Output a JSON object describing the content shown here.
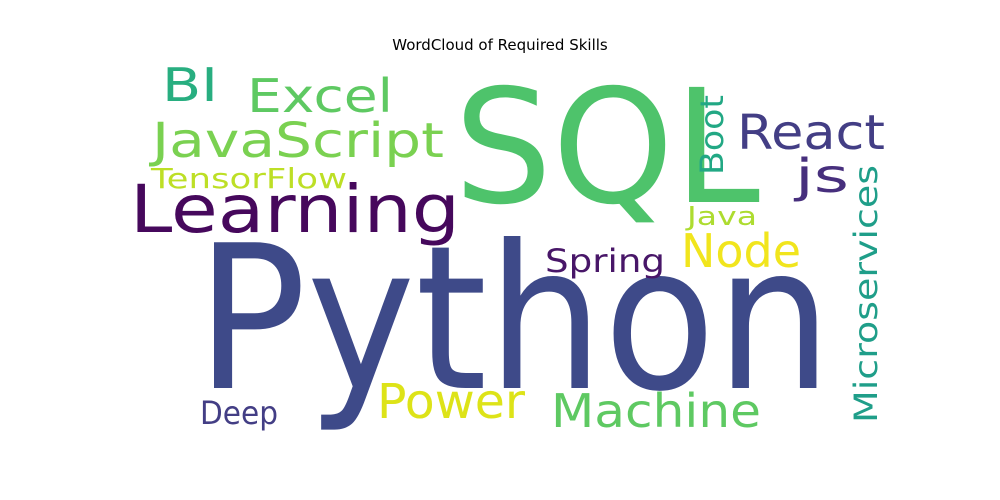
{
  "chart_data": {
    "type": "wordcloud",
    "title": "WordCloud of Required Skills",
    "words": [
      {
        "text": "Python",
        "color": "#3e4a89"
      },
      {
        "text": "SQL",
        "color": "#4ec36b"
      },
      {
        "text": "Learning",
        "color": "#46085c"
      },
      {
        "text": "Machine",
        "color": "#5ec962"
      },
      {
        "text": "JavaScript",
        "color": "#7ad151"
      },
      {
        "text": "React",
        "color": "#433e85"
      },
      {
        "text": "Power",
        "color": "#dde318"
      },
      {
        "text": "Excel",
        "color": "#5ec962"
      },
      {
        "text": "Node",
        "color": "#f1e51d"
      },
      {
        "text": "Microservices",
        "color": "#1f9e89"
      },
      {
        "text": "BI",
        "color": "#28ae80"
      },
      {
        "text": "Spring",
        "color": "#481668"
      },
      {
        "text": "js",
        "color": "#472f7d"
      },
      {
        "text": "Boot",
        "color": "#22a884"
      },
      {
        "text": "TensorFlow",
        "color": "#bddf26"
      },
      {
        "text": "Deep",
        "color": "#433e85"
      },
      {
        "text": "Java",
        "color": "#addc30"
      }
    ]
  }
}
